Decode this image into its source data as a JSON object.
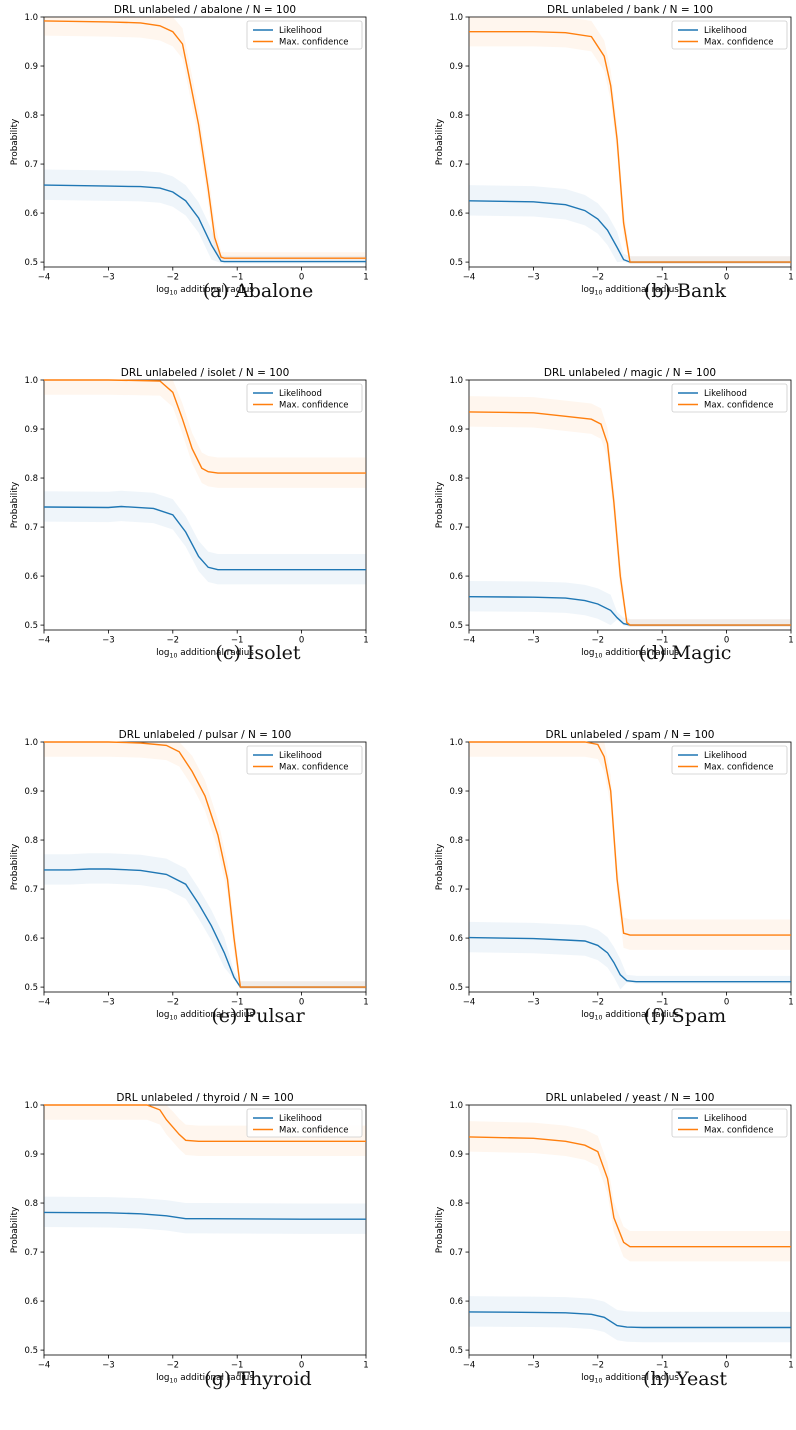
{
  "figure": {
    "xlabel_prefix": "log",
    "xlabel_sub": "10",
    "xlabel_suffix": " additional radius",
    "ylabel": "Probability",
    "legend": [
      "Likelihood",
      "Max. confidence"
    ],
    "colors": {
      "likelihood": "#1f77b4",
      "confidence": "#ff7f0e"
    }
  },
  "chart_data": [
    {
      "type": "line",
      "caption": "(a) Abalone",
      "title": "DRL unlabeled / abalone / N = 100",
      "xlim": [
        -4,
        1
      ],
      "ylim": [
        0.49,
        1.0
      ],
      "xticks": [
        -4,
        -3,
        -2,
        -1,
        0,
        1
      ],
      "yticks": [
        0.5,
        0.6,
        0.7,
        0.8,
        0.9,
        1.0
      ],
      "series": [
        {
          "name": "Likelihood",
          "x": [
            -4,
            -3,
            -2.5,
            -2.2,
            -2,
            -1.8,
            -1.6,
            -1.4,
            -1.25,
            -1.2,
            0,
            1
          ],
          "y": [
            0.657,
            0.655,
            0.654,
            0.651,
            0.643,
            0.625,
            0.59,
            0.535,
            0.502,
            0.501,
            0.501,
            0.501
          ]
        },
        {
          "name": "Max. confidence",
          "x": [
            -4,
            -3,
            -2.5,
            -2.2,
            -2,
            -1.85,
            -1.75,
            -1.6,
            -1.45,
            -1.35,
            -1.25,
            -1.2,
            0,
            1
          ],
          "y": [
            0.992,
            0.99,
            0.988,
            0.982,
            0.97,
            0.945,
            0.88,
            0.78,
            0.65,
            0.55,
            0.51,
            0.508,
            0.508,
            0.508
          ]
        }
      ]
    },
    {
      "type": "line",
      "caption": "(b) Bank",
      "title": "DRL unlabeled / bank / N = 100",
      "xlim": [
        -4,
        1
      ],
      "ylim": [
        0.49,
        1.0
      ],
      "xticks": [
        -4,
        -3,
        -2,
        -1,
        0,
        1
      ],
      "yticks": [
        0.5,
        0.6,
        0.7,
        0.8,
        0.9,
        1.0
      ],
      "series": [
        {
          "name": "Likelihood",
          "x": [
            -4,
            -3,
            -2.5,
            -2.2,
            -2,
            -1.85,
            -1.7,
            -1.6,
            -1.5,
            0,
            1
          ],
          "y": [
            0.625,
            0.623,
            0.617,
            0.605,
            0.588,
            0.565,
            0.53,
            0.505,
            0.5,
            0.5,
            0.5
          ]
        },
        {
          "name": "Max. confidence",
          "x": [
            -4,
            -3,
            -2.5,
            -2.1,
            -1.9,
            -1.8,
            -1.7,
            -1.6,
            -1.5,
            0,
            1
          ],
          "y": [
            0.97,
            0.97,
            0.968,
            0.96,
            0.92,
            0.86,
            0.75,
            0.58,
            0.5,
            0.5,
            0.5
          ]
        }
      ]
    },
    {
      "type": "line",
      "caption": "(c) Isolet",
      "title": "DRL unlabeled / isolet / N = 100",
      "xlim": [
        -4,
        1
      ],
      "ylim": [
        0.49,
        1.0
      ],
      "xticks": [
        -4,
        -3,
        -2,
        -1,
        0,
        1
      ],
      "yticks": [
        0.5,
        0.6,
        0.7,
        0.8,
        0.9,
        1.0
      ],
      "series": [
        {
          "name": "Likelihood",
          "x": [
            -4,
            -3,
            -2.8,
            -2.3,
            -2,
            -1.8,
            -1.6,
            -1.45,
            -1.3,
            0,
            1
          ],
          "y": [
            0.741,
            0.74,
            0.742,
            0.738,
            0.725,
            0.69,
            0.64,
            0.618,
            0.613,
            0.613,
            0.613
          ]
        },
        {
          "name": "Max. confidence",
          "x": [
            -4,
            -3,
            -2.2,
            -2,
            -1.85,
            -1.7,
            -1.55,
            -1.45,
            -1.3,
            0,
            1
          ],
          "y": [
            1.0,
            1.0,
            0.998,
            0.975,
            0.92,
            0.86,
            0.82,
            0.813,
            0.81,
            0.81,
            0.81
          ]
        }
      ]
    },
    {
      "type": "line",
      "caption": "(d) Magic",
      "title": "DRL unlabeled / magic / N = 100",
      "xlim": [
        -4,
        1
      ],
      "ylim": [
        0.49,
        1.0
      ],
      "xticks": [
        -4,
        -3,
        -2,
        -1,
        0,
        1
      ],
      "yticks": [
        0.5,
        0.6,
        0.7,
        0.8,
        0.9,
        1.0
      ],
      "series": [
        {
          "name": "Likelihood",
          "x": [
            -4,
            -3,
            -2.5,
            -2.2,
            -2,
            -1.8,
            -1.7,
            -1.6,
            -1.5,
            0,
            1
          ],
          "y": [
            0.558,
            0.557,
            0.555,
            0.55,
            0.543,
            0.53,
            0.515,
            0.503,
            0.5,
            0.5,
            0.5
          ]
        },
        {
          "name": "Max. confidence",
          "x": [
            -4,
            -3,
            -2.5,
            -2.1,
            -1.95,
            -1.85,
            -1.75,
            -1.65,
            -1.55,
            -1.5,
            0,
            1
          ],
          "y": [
            0.935,
            0.933,
            0.926,
            0.92,
            0.91,
            0.87,
            0.75,
            0.6,
            0.505,
            0.5,
            0.5,
            0.5
          ]
        }
      ]
    },
    {
      "type": "line",
      "caption": "(e) Pulsar",
      "title": "DRL unlabeled / pulsar / N = 100",
      "xlim": [
        -4,
        1
      ],
      "ylim": [
        0.49,
        1.0
      ],
      "xticks": [
        -4,
        -3,
        -2,
        -1,
        0,
        1
      ],
      "yticks": [
        0.5,
        0.6,
        0.7,
        0.8,
        0.9,
        1.0
      ],
      "series": [
        {
          "name": "Likelihood",
          "x": [
            -4,
            -3.6,
            -3.3,
            -3,
            -2.5,
            -2.1,
            -1.8,
            -1.6,
            -1.4,
            -1.2,
            -1.05,
            -0.95,
            0,
            1
          ],
          "y": [
            0.739,
            0.739,
            0.741,
            0.741,
            0.738,
            0.73,
            0.71,
            0.67,
            0.625,
            0.57,
            0.52,
            0.5,
            0.5,
            0.5
          ]
        },
        {
          "name": "Max. confidence",
          "x": [
            -4,
            -3,
            -2.5,
            -2.1,
            -1.9,
            -1.7,
            -1.5,
            -1.3,
            -1.15,
            -1.05,
            -0.95,
            0,
            1
          ],
          "y": [
            1.0,
            1.0,
            0.998,
            0.993,
            0.98,
            0.94,
            0.89,
            0.81,
            0.72,
            0.6,
            0.5,
            0.5,
            0.5
          ]
        }
      ]
    },
    {
      "type": "line",
      "caption": "(f) Spam",
      "title": "DRL unlabeled / spam / N = 100",
      "xlim": [
        -4,
        1
      ],
      "ylim": [
        0.49,
        1.0
      ],
      "xticks": [
        -4,
        -3,
        -2,
        -1,
        0,
        1
      ],
      "yticks": [
        0.5,
        0.6,
        0.7,
        0.8,
        0.9,
        1.0
      ],
      "series": [
        {
          "name": "Likelihood",
          "x": [
            -4,
            -3,
            -2.5,
            -2.2,
            -2,
            -1.85,
            -1.75,
            -1.65,
            -1.55,
            -1.4,
            0,
            1
          ],
          "y": [
            0.601,
            0.599,
            0.596,
            0.594,
            0.585,
            0.57,
            0.55,
            0.525,
            0.513,
            0.511,
            0.511,
            0.511
          ]
        },
        {
          "name": "Max. confidence",
          "x": [
            -4,
            -3,
            -2.2,
            -2,
            -1.9,
            -1.8,
            -1.7,
            -1.6,
            -1.5,
            0,
            1
          ],
          "y": [
            1.0,
            1.0,
            1.0,
            0.995,
            0.97,
            0.9,
            0.72,
            0.61,
            0.606,
            0.606,
            0.606
          ]
        }
      ]
    },
    {
      "type": "line",
      "caption": "(g) Thyroid",
      "title": "DRL unlabeled / thyroid / N = 100",
      "xlim": [
        -4,
        1
      ],
      "ylim": [
        0.49,
        1.0
      ],
      "xticks": [
        -4,
        -3,
        -2,
        -1,
        0,
        1
      ],
      "yticks": [
        0.5,
        0.6,
        0.7,
        0.8,
        0.9,
        1.0
      ],
      "series": [
        {
          "name": "Likelihood",
          "x": [
            -4,
            -3,
            -2.5,
            -2.1,
            -1.8,
            -1.5,
            0,
            1
          ],
          "y": [
            0.781,
            0.78,
            0.778,
            0.774,
            0.768,
            0.768,
            0.767,
            0.767
          ]
        },
        {
          "name": "Max. confidence",
          "x": [
            -4,
            -2.4,
            -2.2,
            -2.1,
            -2,
            -1.9,
            -1.8,
            -1.6,
            0,
            1
          ],
          "y": [
            1.0,
            1.0,
            0.99,
            0.97,
            0.955,
            0.94,
            0.928,
            0.926,
            0.926,
            0.926
          ]
        }
      ]
    },
    {
      "type": "line",
      "caption": "(h) Yeast",
      "title": "DRL unlabeled / yeast / N = 100",
      "xlim": [
        -4,
        1
      ],
      "ylim": [
        0.49,
        1.0
      ],
      "xticks": [
        -4,
        -3,
        -2,
        -1,
        0,
        1
      ],
      "yticks": [
        0.5,
        0.6,
        0.7,
        0.8,
        0.9,
        1.0
      ],
      "series": [
        {
          "name": "Likelihood",
          "x": [
            -4,
            -3,
            -2.5,
            -2.1,
            -1.9,
            -1.7,
            -1.55,
            -1.3,
            0,
            1
          ],
          "y": [
            0.578,
            0.577,
            0.576,
            0.573,
            0.567,
            0.55,
            0.547,
            0.546,
            0.546,
            0.546
          ]
        },
        {
          "name": "Max. confidence",
          "x": [
            -4,
            -3,
            -2.5,
            -2.2,
            -2,
            -1.85,
            -1.75,
            -1.6,
            -1.5,
            0,
            1
          ],
          "y": [
            0.935,
            0.932,
            0.926,
            0.918,
            0.905,
            0.85,
            0.77,
            0.72,
            0.711,
            0.711,
            0.711
          ]
        }
      ]
    }
  ]
}
